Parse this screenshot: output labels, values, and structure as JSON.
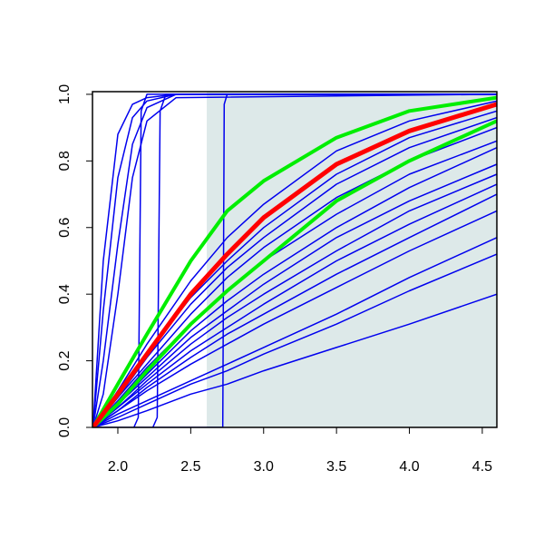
{
  "chart_data": {
    "type": "line",
    "xlim": [
      1.826,
      4.6
    ],
    "ylim": [
      0,
      1.008
    ],
    "xticks": [
      {
        "value": 2,
        "label": "2.0"
      },
      2.5,
      {
        "value": 3,
        "label": "3.0"
      },
      3.5,
      {
        "value": 4,
        "label": "4.0"
      },
      4.5
    ],
    "yticks": [
      {
        "value": 0,
        "label": "0.0"
      },
      0.2,
      0.4,
      0.6,
      0.8,
      {
        "value": 1,
        "label": "1.0"
      }
    ],
    "shaded_region": {
      "x": [
        2.61,
        4.6
      ],
      "color": "#dde9e9"
    },
    "series": [
      {
        "color": "#0000ee",
        "x": [
          1.83,
          2.0,
          2.2,
          2.5,
          2.75,
          3.0,
          3.5,
          4.0,
          4.6
        ],
        "values": [
          0,
          0.02,
          0.05,
          0.1,
          0.13,
          0.17,
          0.24,
          0.31,
          0.4
        ]
      },
      {
        "color": "#0000ee",
        "x": [
          1.83,
          2.0,
          2.2,
          2.5,
          2.75,
          3.0,
          3.5,
          4.0,
          4.6
        ],
        "values": [
          0,
          0.03,
          0.07,
          0.13,
          0.17,
          0.22,
          0.31,
          0.41,
          0.52
        ]
      },
      {
        "color": "#0000ee",
        "x": [
          1.83,
          2.0,
          2.2,
          2.5,
          2.75,
          3.0,
          3.5,
          4.0,
          4.6
        ],
        "values": [
          0,
          0.04,
          0.08,
          0.14,
          0.19,
          0.24,
          0.34,
          0.45,
          0.57
        ]
      },
      {
        "color": "#0000ee",
        "x": [
          1.83,
          2.0,
          2.2,
          2.5,
          2.75,
          3.0,
          3.5,
          4.0,
          4.6
        ],
        "values": [
          0,
          0.05,
          0.11,
          0.19,
          0.25,
          0.31,
          0.42,
          0.53,
          0.65
        ]
      },
      {
        "color": "#0000ee",
        "x": [
          1.83,
          2.0,
          2.2,
          2.5,
          2.75,
          3.0,
          3.5,
          4.0,
          4.6
        ],
        "values": [
          0,
          0.05,
          0.12,
          0.21,
          0.28,
          0.34,
          0.46,
          0.57,
          0.7
        ]
      },
      {
        "color": "#0000ee",
        "x": [
          1.83,
          2.0,
          2.2,
          2.5,
          2.75,
          3.0,
          3.5,
          4.0,
          4.6
        ],
        "values": [
          0,
          0.06,
          0.13,
          0.23,
          0.3,
          0.37,
          0.5,
          0.61,
          0.73
        ]
      },
      {
        "color": "#0000ee",
        "x": [
          1.83,
          2.0,
          2.2,
          2.5,
          2.75,
          3.0,
          3.5,
          4.0,
          4.6
        ],
        "values": [
          0,
          0.06,
          0.14,
          0.25,
          0.33,
          0.4,
          0.53,
          0.65,
          0.76
        ]
      },
      {
        "color": "#0000ee",
        "x": [
          1.83,
          2.0,
          2.2,
          2.5,
          2.75,
          3.0,
          3.5,
          4.0,
          4.6
        ],
        "values": [
          0,
          0.07,
          0.15,
          0.27,
          0.35,
          0.43,
          0.57,
          0.68,
          0.79
        ]
      },
      {
        "color": "#0000ee",
        "x": [
          1.83,
          2.0,
          2.2,
          2.5,
          2.75,
          3.0,
          3.5,
          4.0,
          4.6
        ],
        "values": [
          0,
          0.07,
          0.16,
          0.29,
          0.38,
          0.46,
          0.6,
          0.72,
          0.84
        ]
      },
      {
        "color": "#0000ee",
        "x": [
          1.83,
          2.0,
          2.2,
          2.5,
          2.75,
          3.0,
          3.5,
          4.0,
          4.6
        ],
        "values": [
          0,
          0.08,
          0.18,
          0.31,
          0.41,
          0.5,
          0.64,
          0.76,
          0.86
        ]
      },
      {
        "color": "#0000ee",
        "x": [
          1.83,
          2.0,
          2.2,
          2.5,
          2.75,
          3.0,
          3.5,
          4.0,
          4.6
        ],
        "values": [
          0,
          0.09,
          0.19,
          0.34,
          0.45,
          0.54,
          0.69,
          0.8,
          0.9
        ]
      },
      {
        "color": "#0000ee",
        "x": [
          1.83,
          2.0,
          2.2,
          2.5,
          2.75,
          3.0,
          3.5,
          4.0,
          4.6
        ],
        "values": [
          0,
          0.09,
          0.21,
          0.37,
          0.48,
          0.57,
          0.73,
          0.84,
          0.93
        ]
      },
      {
        "color": "#0000ee",
        "x": [
          1.83,
          2.0,
          2.2,
          2.5,
          2.75,
          3.0,
          3.5,
          4.0,
          4.6
        ],
        "values": [
          0,
          0.1,
          0.22,
          0.39,
          0.5,
          0.6,
          0.76,
          0.87,
          0.95
        ]
      },
      {
        "color": "#0000ee",
        "x": [
          1.83,
          2.0,
          2.2,
          2.5,
          2.75,
          3.0,
          3.5,
          4.0,
          4.6
        ],
        "values": [
          0,
          0.11,
          0.25,
          0.44,
          0.57,
          0.67,
          0.83,
          0.92,
          0.98
        ]
      },
      {
        "color": "#0000ee",
        "x": [
          1.83,
          1.9,
          2.0,
          2.1,
          2.2,
          2.4,
          4.6
        ],
        "values": [
          0,
          0.35,
          0.75,
          0.93,
          0.98,
          1,
          1
        ]
      },
      {
        "color": "#0000ee",
        "x": [
          1.83,
          1.9,
          2.0,
          2.1,
          2.2,
          2.4,
          4.6
        ],
        "values": [
          0,
          0.2,
          0.55,
          0.85,
          0.96,
          1,
          1
        ]
      },
      {
        "color": "#0000ee",
        "x": [
          1.83,
          1.9,
          2.0,
          2.1,
          2.2,
          2.4,
          4.6
        ],
        "values": [
          0,
          0.1,
          0.4,
          0.75,
          0.92,
          0.99,
          1
        ]
      },
      {
        "color": "#0000ee",
        "x": [
          1.83,
          1.9,
          2.0,
          2.1,
          2.2,
          2.4,
          4.6
        ],
        "values": [
          0,
          0.5,
          0.88,
          0.97,
          0.99,
          1,
          1
        ]
      },
      {
        "color": "#0000ee",
        "x": [
          2.11,
          2.14,
          2.16,
          2.2,
          4.6
        ],
        "values": [
          0,
          0.03,
          0.95,
          1,
          1
        ]
      },
      {
        "color": "#0000ee",
        "x": [
          2.24,
          2.27,
          2.29,
          2.33,
          4.6
        ],
        "values": [
          0,
          0.03,
          0.95,
          1,
          1
        ]
      },
      {
        "color": "#0000ee",
        "x": [
          1.83,
          2.72,
          2.73,
          2.75,
          4.6
        ],
        "values": [
          0,
          0,
          0.97,
          1,
          1
        ]
      },
      {
        "color": "#00ee00",
        "width": 4,
        "x": [
          1.83,
          2.0,
          2.2,
          2.5,
          2.75,
          3.0,
          3.5,
          4.0,
          4.6
        ],
        "values": [
          0,
          0.13,
          0.28,
          0.5,
          0.65,
          0.74,
          0.87,
          0.95,
          0.99
        ]
      },
      {
        "color": "#00ee00",
        "width": 4,
        "x": [
          1.83,
          2.0,
          2.2,
          2.5,
          2.75,
          3.0,
          3.5,
          4.0,
          4.6
        ],
        "values": [
          0,
          0.07,
          0.17,
          0.31,
          0.41,
          0.5,
          0.68,
          0.8,
          0.92
        ]
      },
      {
        "color": "#ff0000",
        "width": 5,
        "x": [
          1.83,
          2.0,
          2.2,
          2.5,
          2.75,
          3.0,
          3.5,
          4.0,
          4.6
        ],
        "values": [
          0,
          0.1,
          0.22,
          0.4,
          0.52,
          0.63,
          0.79,
          0.89,
          0.97
        ]
      }
    ]
  }
}
